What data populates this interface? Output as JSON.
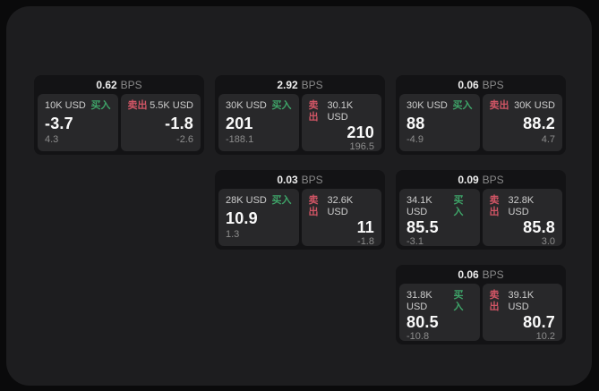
{
  "labels": {
    "bps_unit": "BPS",
    "buy_label": "买入",
    "sell_label": "卖出"
  },
  "colors": {
    "page_bg": "#0a0a0b",
    "frame_bg": "#1d1d1f",
    "card_bg": "#131315",
    "panel_bg": "#28282a",
    "buy_green": "#3ea368",
    "sell_red": "#d05565",
    "value_white": "#fafafa",
    "label_gray": "#cdcdcd",
    "sub_gray": "#8d8d8d"
  },
  "cards": [
    {
      "bps": "0.62",
      "buy": {
        "volume": "10K USD",
        "price": "-3.7",
        "sub": "4.3"
      },
      "sell": {
        "volume": "5.5K USD",
        "price": "-1.8",
        "sub": "-2.6"
      }
    },
    {
      "bps": "2.92",
      "buy": {
        "volume": "30K USD",
        "price": "201",
        "sub": "-188.1"
      },
      "sell": {
        "volume": "30.1K USD",
        "price": "210",
        "sub": "196.5"
      }
    },
    {
      "bps": "0.06",
      "buy": {
        "volume": "30K USD",
        "price": "88",
        "sub": "-4.9"
      },
      "sell": {
        "volume": "30K USD",
        "price": "88.2",
        "sub": "4.7"
      }
    },
    {
      "bps": "0.03",
      "buy": {
        "volume": "28K USD",
        "price": "10.9",
        "sub": "1.3"
      },
      "sell": {
        "volume": "32.6K USD",
        "price": "11",
        "sub": "-1.8"
      }
    },
    {
      "bps": "0.09",
      "buy": {
        "volume": "34.1K USD",
        "price": "85.5",
        "sub": "-3.1"
      },
      "sell": {
        "volume": "32.8K USD",
        "price": "85.8",
        "sub": "3.0"
      }
    },
    {
      "bps": "0.06",
      "buy": {
        "volume": "31.8K USD",
        "price": "80.5",
        "sub": "-10.8"
      },
      "sell": {
        "volume": "39.1K USD",
        "price": "80.7",
        "sub": "10.2"
      }
    }
  ]
}
